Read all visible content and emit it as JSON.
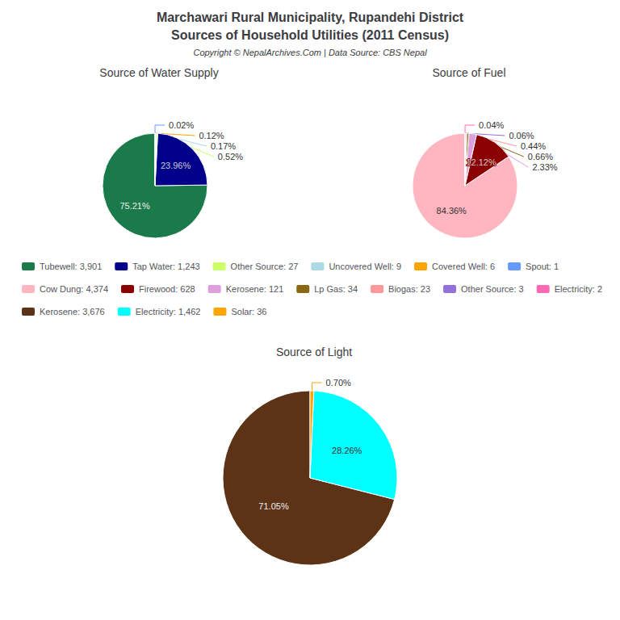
{
  "title": "Marchawari Rural Municipality, Rupandehi District",
  "subtitle": "Sources of Household Utilities (2011 Census)",
  "annotations": [
    "Copyright © NepalArchives.Com | Data Source: CBS Nepal"
  ],
  "chart_data": [
    {
      "type": "pie",
      "title": "Source of Water Supply",
      "categories": [
        "Tubewell: 3,901",
        "Tap Water: 1,243",
        "Other Source: 27",
        "Uncovered Well: 9",
        "Covered Well: 6",
        "Spout: 1"
      ],
      "values": [
        75.21,
        23.96,
        0.52,
        0.17,
        0.12,
        0.02
      ],
      "value_labels": [
        "75.21%",
        "23.96%",
        "0.52%",
        "0.17%",
        "0.12%",
        "0.02%"
      ],
      "colors": [
        "#1a7a4a",
        "#00008B",
        "#ccff66",
        "#add8e6",
        "#ffa500",
        "#6699ff"
      ],
      "data_labels": true,
      "legend": "center"
    },
    {
      "type": "pie",
      "title": "Source of Fuel",
      "categories": [
        "Cow Dung: 4,374",
        "Firewood: 628",
        "Kerosene: 121",
        "Lp Gas: 34",
        "Biogas: 23",
        "Other Source: 3",
        "Electricity: 2"
      ],
      "values": [
        84.36,
        12.12,
        2.33,
        0.66,
        0.44,
        0.06,
        0.04
      ],
      "value_labels": [
        "84.36%",
        "12.12%",
        "2.33%",
        "0.66%",
        "0.44%",
        "0.06%",
        "0.04%"
      ],
      "colors": [
        "#ffb6c1",
        "#8B0000",
        "#dda0dd",
        "#8B6914",
        "#ff9999",
        "#9370DB",
        "#ff69b4"
      ],
      "data_labels": true,
      "legend": "center"
    },
    {
      "type": "pie",
      "title": "Source of Light",
      "categories": [
        "Kerosene: 3,676",
        "Electricity: 1,462",
        "Solar: 36"
      ],
      "values": [
        71.05,
        28.26,
        0.7
      ],
      "value_labels": [
        "71.05%",
        "28.26%",
        "0.70%"
      ],
      "colors": [
        "#5C3317",
        "#00FFFF",
        "#FFA500"
      ],
      "data_labels": true,
      "legend": "center"
    }
  ]
}
